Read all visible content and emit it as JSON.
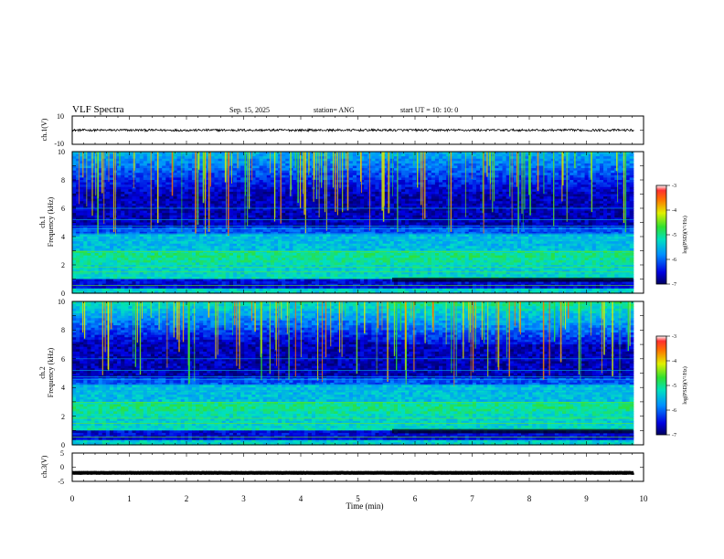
{
  "header": {
    "title": "VLF Spectra",
    "date": "Sep. 15, 2025",
    "station": "station= ANG",
    "start": "start  UT  =   10: 10: 0"
  },
  "chart_data": [
    {
      "id": "ch1_voltage",
      "type": "line",
      "ylabel": "ch.1(V)",
      "ylim": [
        -10,
        10
      ],
      "yticks": [
        "10",
        "-10"
      ],
      "trace_level": 0,
      "trace_noise": 0.8,
      "xlim": [
        0,
        10
      ]
    },
    {
      "id": "ch1_spectrogram",
      "type": "heatmap",
      "ylabel": "ch.1",
      "ylabel2": "Frequency  (kHz)",
      "ylim": [
        0,
        10
      ],
      "yticks": [
        "0",
        "2",
        "4",
        "6",
        "8",
        "10"
      ],
      "xlim": [
        0,
        10
      ],
      "data_end_min": 9.82,
      "colorbar": {
        "label": "log(PSD)(V²/Hz)",
        "range": [
          -7,
          -3
        ],
        "ticks": [
          "-3",
          "-4",
          "-5",
          "-6",
          "-7"
        ]
      }
    },
    {
      "id": "ch2_spectrogram",
      "type": "heatmap",
      "ylabel": "ch.2",
      "ylabel2": "Frequency  (kHz)",
      "ylim": [
        0,
        10
      ],
      "yticks": [
        "0",
        "2",
        "4",
        "6",
        "8",
        "10"
      ],
      "xlim": [
        0,
        10
      ],
      "data_end_min": 9.82,
      "colorbar": {
        "label": "log(PSD)(V²/Hz)",
        "range": [
          -7,
          -3
        ],
        "ticks": [
          "-3",
          "-4",
          "-5",
          "-6",
          "-7"
        ]
      }
    },
    {
      "id": "ch3_voltage",
      "type": "line",
      "ylabel": "ch.3(V)",
      "ylim": [
        -5,
        5
      ],
      "yticks": [
        "5",
        "0",
        "-5"
      ],
      "trace_level": -2,
      "trace_noise": 0.05,
      "xlim": [
        0,
        10
      ],
      "xlabel": "Time  (min)",
      "xticks": [
        "0",
        "1",
        "2",
        "3",
        "4",
        "5",
        "6",
        "7",
        "8",
        "9",
        "10"
      ]
    }
  ]
}
